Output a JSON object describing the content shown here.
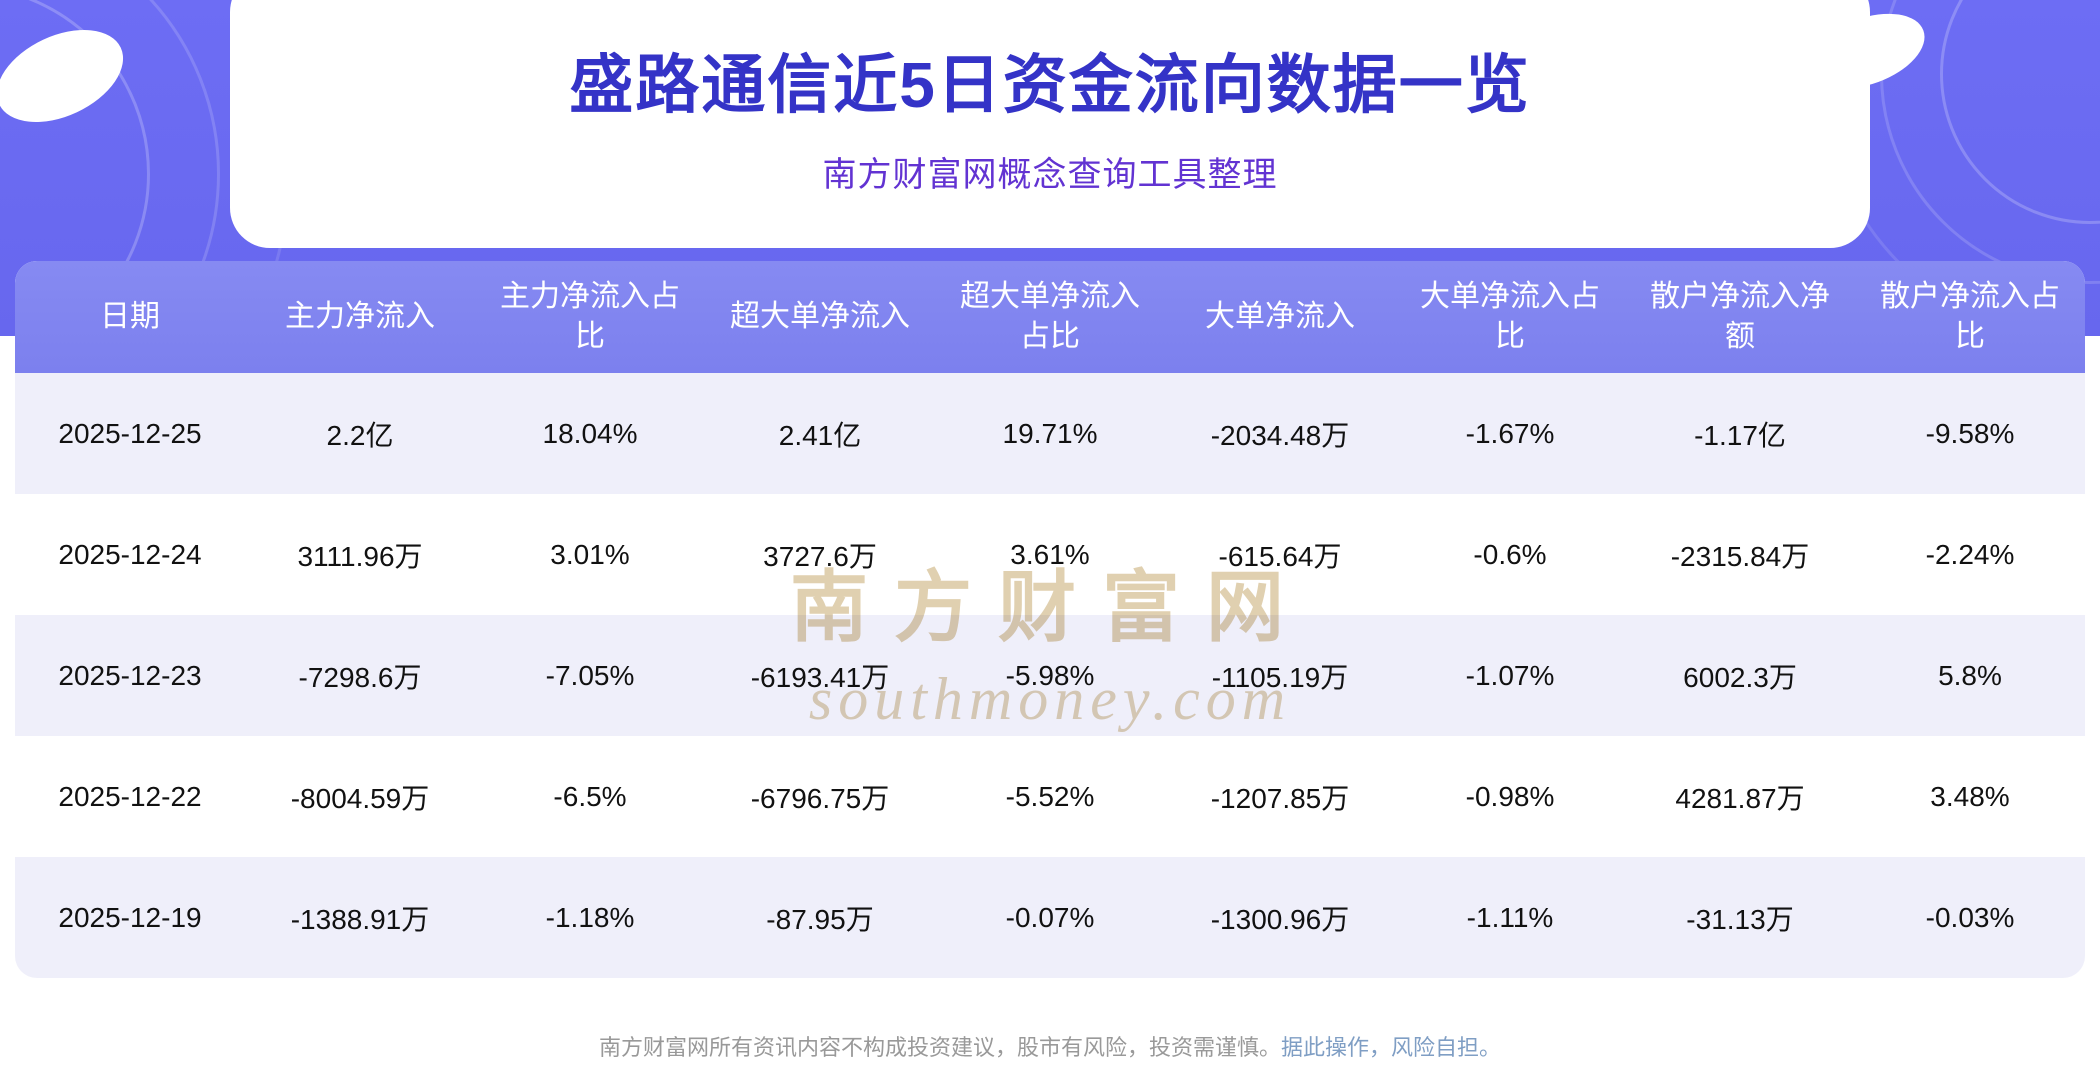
{
  "header": {
    "title": "盛路通信近5日资金流向数据一览",
    "subtitle": "南方财富网概念查询工具整理"
  },
  "watermark": {
    "line1": "南方财富网",
    "line2": "southmoney.com"
  },
  "footer": {
    "disclaimer": "南方财富网所有资讯内容不构成投资建议，股市有风险，投资需谨慎。",
    "disclaimer_tail": "据此操作，风险自担。"
  },
  "colors": {
    "banner_purple": "#6d6df4",
    "table_header_purple": "#7c80ee",
    "row_alt_lavender": "#efeffa",
    "title_blue": "#3433c7",
    "subtitle_violet": "#6233d2",
    "watermark_gold": "#c6aa70",
    "footer_gray": "#999999"
  },
  "chart_data": {
    "type": "table",
    "title": "盛路通信近5日资金流向数据一览",
    "subtitle": "南方财富网概念查询工具整理",
    "columns": [
      "日期",
      "主力净流入",
      "主力净流入占比",
      "超大单净流入",
      "超大单净流入占比",
      "大单净流入",
      "大单净流入占比",
      "散户净流入净额",
      "散户净流入占比"
    ],
    "rows": [
      [
        "2025-12-25",
        "2.2亿",
        "18.04%",
        "2.41亿",
        "19.71%",
        "-2034.48万",
        "-1.67%",
        "-1.17亿",
        "-9.58%"
      ],
      [
        "2025-12-24",
        "3111.96万",
        "3.01%",
        "3727.6万",
        "3.61%",
        "-615.64万",
        "-0.6%",
        "-2315.84万",
        "-2.24%"
      ],
      [
        "2025-12-23",
        "-7298.6万",
        "-7.05%",
        "-6193.41万",
        "-5.98%",
        "-1105.19万",
        "-1.07%",
        "6002.3万",
        "5.8%"
      ],
      [
        "2025-12-22",
        "-8004.59万",
        "-6.5%",
        "-6796.75万",
        "-5.52%",
        "-1207.85万",
        "-0.98%",
        "4281.87万",
        "3.48%"
      ],
      [
        "2025-12-19",
        "-1388.91万",
        "-1.18%",
        "-87.95万",
        "-0.07%",
        "-1300.96万",
        "-1.11%",
        "-31.13万",
        "-0.03%"
      ]
    ]
  }
}
